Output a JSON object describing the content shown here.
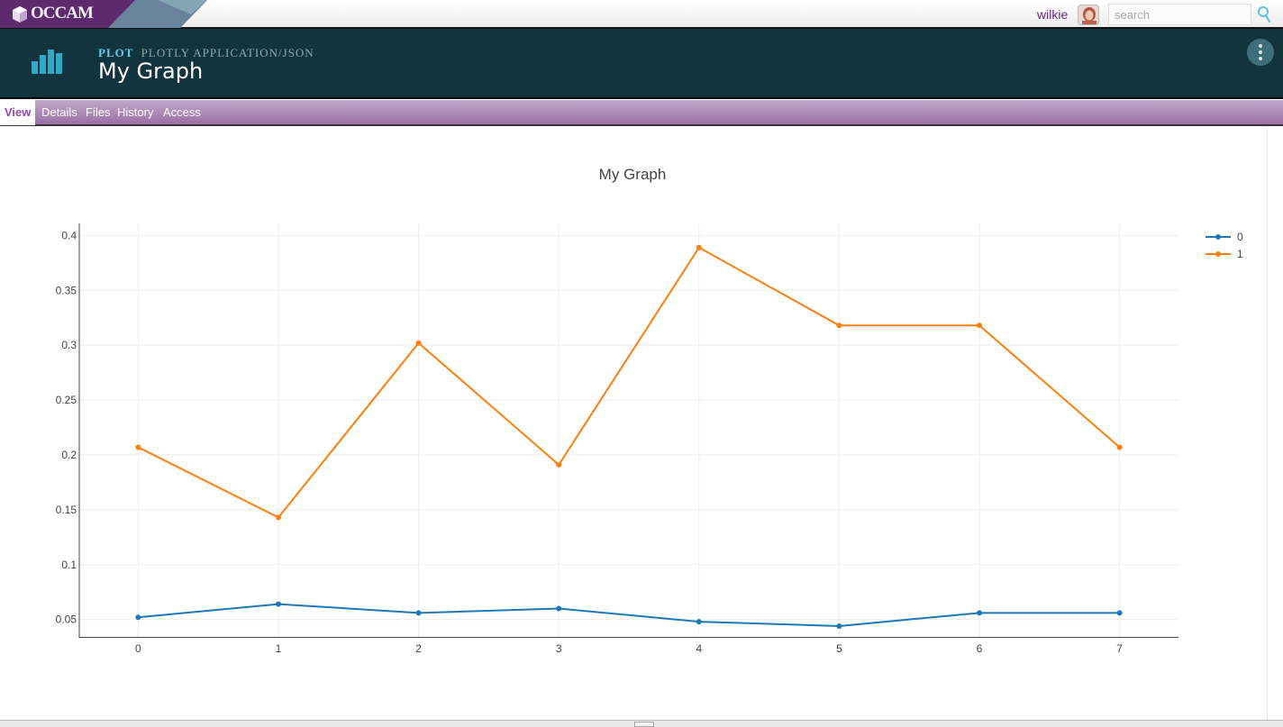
{
  "app": {
    "logo_text": "OCCAM",
    "username": "wilkie",
    "search_placeholder": "search"
  },
  "object": {
    "type": "plot",
    "subtype": "plotly application/json",
    "title": "My Graph"
  },
  "tabs": [
    {
      "label": "View",
      "active": true
    },
    {
      "label": "Details",
      "active": false
    },
    {
      "label": "Files",
      "active": false
    },
    {
      "label": "History",
      "active": false
    },
    {
      "label": "Access",
      "active": false
    }
  ],
  "colors": {
    "header_bg": "#12343f",
    "tab_bar": "#9a6fa5",
    "series_0": "#1f77b4",
    "series_1": "#ff7f0e"
  },
  "chart_data": {
    "type": "line",
    "title": "My Graph",
    "xlabel": "",
    "ylabel": "",
    "x": [
      0,
      1,
      2,
      3,
      4,
      5,
      6,
      7
    ],
    "series": [
      {
        "name": "0",
        "color": "#1f77b4",
        "values": [
          0.052,
          0.064,
          0.056,
          0.06,
          0.048,
          0.044,
          0.056,
          0.056
        ]
      },
      {
        "name": "1",
        "color": "#ff7f0e",
        "values": [
          0.207,
          0.143,
          0.302,
          0.191,
          0.389,
          0.318,
          0.318,
          0.207
        ]
      }
    ],
    "x_ticks": [
      "0",
      "1",
      "2",
      "3",
      "4",
      "5",
      "6",
      "7"
    ],
    "y_ticks": [
      "0.05",
      "0.1",
      "0.15",
      "0.2",
      "0.25",
      "0.3",
      "0.35",
      "0.4"
    ],
    "xlim": [
      -0.42,
      7.42
    ],
    "ylim": [
      0.0333,
      0.411
    ],
    "grid": true,
    "legend_position": "top-right",
    "markers": true
  }
}
